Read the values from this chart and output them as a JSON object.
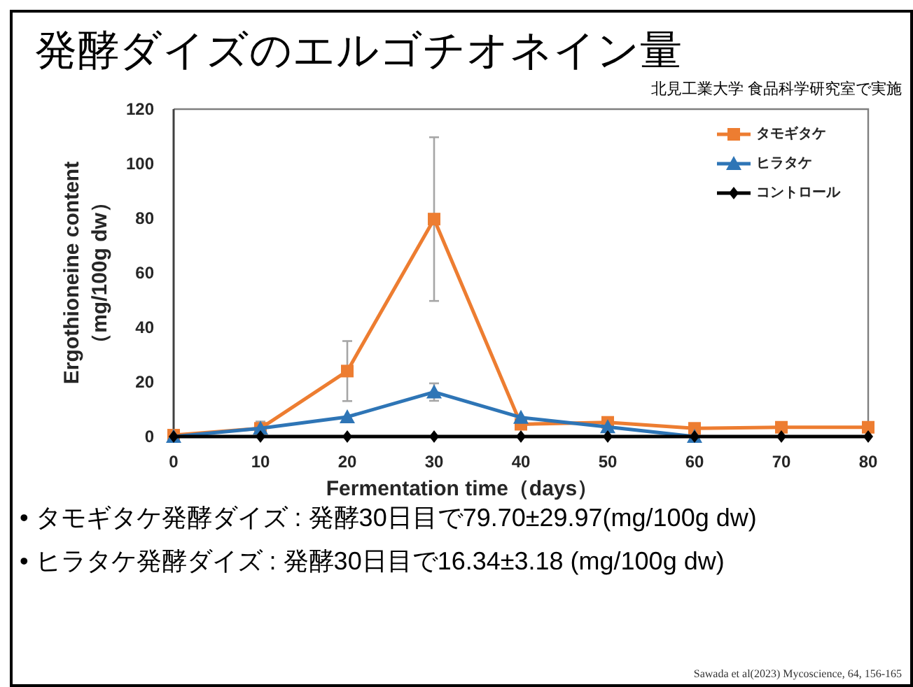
{
  "chart_data": {
    "type": "line",
    "title": "発酵ダイズのエルゴチオネイン量",
    "subtitle": "北見工業大学  食品科学研究室で実施",
    "xlabel": "Fermentation time（days）",
    "ylabel": "Ergothioneine content\n（mg/100g dw）",
    "x": [
      0,
      10,
      20,
      30,
      40,
      50,
      60,
      70,
      80
    ],
    "xlim": [
      0,
      80
    ],
    "xticks": [
      0,
      10,
      20,
      30,
      40,
      50,
      60,
      70,
      80
    ],
    "ylim": [
      0,
      120
    ],
    "yticks": [
      0,
      20,
      40,
      60,
      80,
      100,
      120
    ],
    "grid": false,
    "legend": "top right",
    "series": [
      {
        "name": "タモギタケ",
        "color": "#ed7d31",
        "marker": "square",
        "values": [
          0.5,
          3,
          24,
          79.7,
          4.5,
          5.2,
          3,
          3.4,
          3.4
        ],
        "errors": [
          null,
          2.5,
          11,
          30,
          null,
          null,
          null,
          null,
          null
        ]
      },
      {
        "name": "ヒラタケ",
        "color": "#2e75b6",
        "marker": "triangle",
        "values": [
          0,
          3,
          7.2,
          16.3,
          7,
          3.5,
          0,
          null,
          null
        ],
        "errors": [
          null,
          null,
          null,
          3.2,
          null,
          null,
          null,
          null,
          null
        ]
      },
      {
        "name": "コントロール",
        "color": "#000000",
        "marker": "diamond",
        "values": [
          0,
          0,
          0,
          0,
          0,
          0,
          0,
          0,
          0
        ]
      }
    ],
    "annotations": [
      "• タモギタケ発酵ダイズ : 発酵30日目で79.70±29.97(mg/100g dw)",
      "• ヒラタケ発酵ダイズ : 発酵30日目で16.34±3.18 (mg/100g dw)",
      "Sawada et al(2023) Mycoscience, 64, 156-165"
    ]
  }
}
